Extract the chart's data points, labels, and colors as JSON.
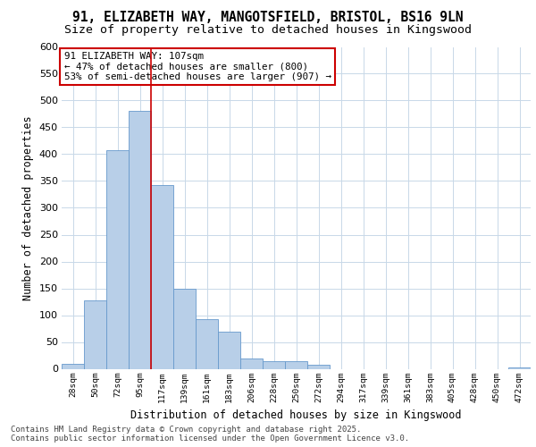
{
  "title_line1": "91, ELIZABETH WAY, MANGOTSFIELD, BRISTOL, BS16 9LN",
  "title_line2": "Size of property relative to detached houses in Kingswood",
  "xlabel": "Distribution of detached houses by size in Kingswood",
  "ylabel": "Number of detached properties",
  "categories": [
    "28sqm",
    "50sqm",
    "72sqm",
    "95sqm",
    "117sqm",
    "139sqm",
    "161sqm",
    "183sqm",
    "206sqm",
    "228sqm",
    "250sqm",
    "272sqm",
    "294sqm",
    "317sqm",
    "339sqm",
    "361sqm",
    "383sqm",
    "405sqm",
    "428sqm",
    "450sqm",
    "472sqm"
  ],
  "values": [
    10,
    127,
    407,
    481,
    343,
    150,
    93,
    70,
    20,
    15,
    15,
    8,
    0,
    0,
    0,
    0,
    0,
    0,
    0,
    0,
    2
  ],
  "bar_color": "#b8cfe8",
  "bar_edge_color": "#6699cc",
  "subject_line_index": 4,
  "subject_line_color": "#cc0000",
  "annotation_text": "91 ELIZABETH WAY: 107sqm\n← 47% of detached houses are smaller (800)\n53% of semi-detached houses are larger (907) →",
  "annotation_box_color": "#ffffff",
  "annotation_box_edge": "#cc0000",
  "ylim": [
    0,
    600
  ],
  "yticks": [
    0,
    50,
    100,
    150,
    200,
    250,
    300,
    350,
    400,
    450,
    500,
    550,
    600
  ],
  "grid_color": "#c8d8e8",
  "background_color": "#ffffff",
  "plot_bg_color": "#ffffff",
  "footnote": "Contains HM Land Registry data © Crown copyright and database right 2025.\nContains public sector information licensed under the Open Government Licence v3.0.",
  "title_fontsize": 10.5,
  "subtitle_fontsize": 9.5,
  "xlabel_fontsize": 8.5,
  "ylabel_fontsize": 8.5,
  "footnote_fontsize": 6.5
}
